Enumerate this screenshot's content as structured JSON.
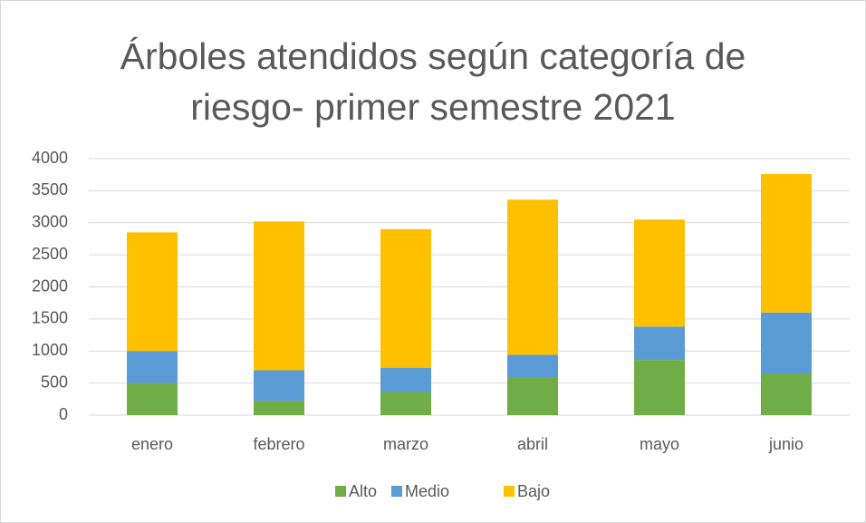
{
  "chart_data": {
    "type": "stacked_bar",
    "title": "Árboles atendidos según categoría de riesgo- primer semestre 2021",
    "categories": [
      "enero",
      "febrero",
      "marzo",
      "abril",
      "mayo",
      "junio"
    ],
    "series": [
      {
        "name": "Alto",
        "color": "#70ad47",
        "values": [
          500,
          220,
          360,
          580,
          860,
          650
        ]
      },
      {
        "name": "Medio",
        "color": "#5b9bd5",
        "values": [
          500,
          480,
          380,
          360,
          520,
          950
        ]
      },
      {
        "name": "Bajo",
        "color": "#ffc000",
        "values": [
          1850,
          2320,
          2160,
          2420,
          1670,
          2160
        ]
      }
    ],
    "ylim": [
      0,
      4000
    ],
    "yticks": [
      0,
      500,
      1000,
      1500,
      2000,
      2500,
      3000,
      3500,
      4000
    ],
    "grid": true,
    "legend": "bottom"
  }
}
